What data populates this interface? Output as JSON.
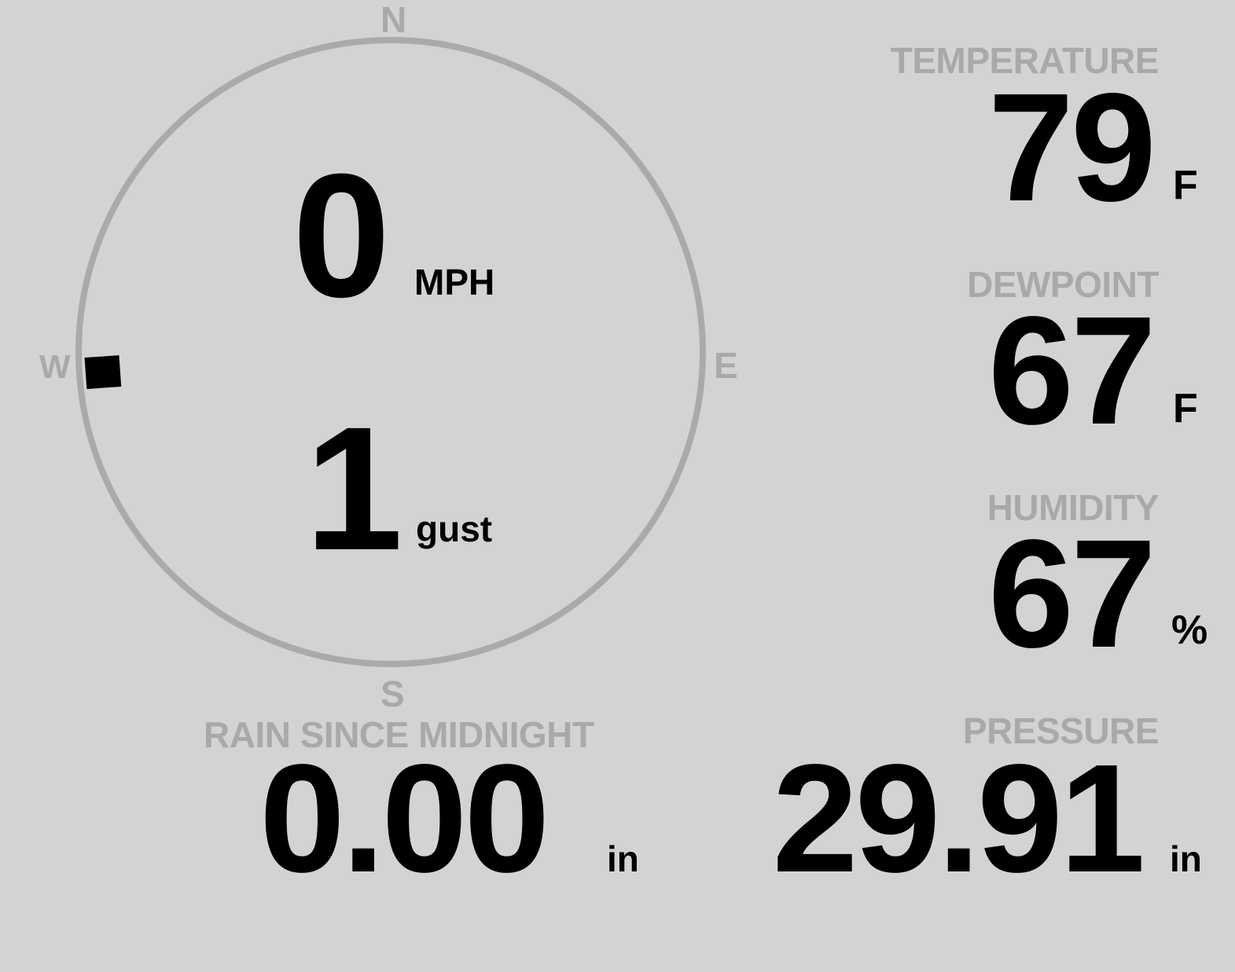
{
  "compass": {
    "north": "N",
    "south": "S",
    "east": "E",
    "west": "W",
    "wind_direction_deg": 266,
    "ring_color": "#aaaaaa"
  },
  "wind": {
    "speed": "0",
    "speed_unit": "MPH",
    "gust": "1",
    "gust_unit": "gust"
  },
  "temperature": {
    "label": "TEMPERATURE",
    "value": "79",
    "unit": "F"
  },
  "dewpoint": {
    "label": "DEWPOINT",
    "value": "67",
    "unit": "F"
  },
  "humidity": {
    "label": "HUMIDITY",
    "value": "67",
    "unit": "%"
  },
  "rain": {
    "label": "RAIN SINCE MIDNIGHT",
    "value": "0.00",
    "unit": "in"
  },
  "pressure": {
    "label": "PRESSURE",
    "value": "29.91",
    "unit": "in"
  },
  "colors": {
    "background": "#d3d3d3",
    "label": "#a9a9a9",
    "value": "#000000"
  }
}
